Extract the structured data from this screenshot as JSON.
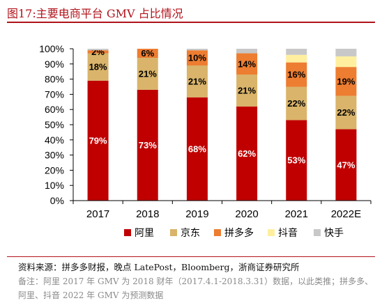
{
  "figure": {
    "label": "图17:",
    "title": "主要电商平台 GMV 占比情况"
  },
  "footer": {
    "source": "资料来源：拼多多财报，晚点 LatePost，Bloomberg，浙商证券研究所",
    "note": "备注：阿里 2017 年 GMV 为 2018 财年（2017.4.1-2018.3.31）数据，以此类推；拼多多、阿里、抖音 2022 年 GMV 为预测数据"
  },
  "chart_data": {
    "type": "bar",
    "stacked": true,
    "categories": [
      "2017",
      "2018",
      "2019",
      "2020",
      "2021",
      "2022E"
    ],
    "series": [
      {
        "name": "阿里",
        "color": "#c00000",
        "values": [
          79,
          73,
          68,
          62,
          53,
          47
        ],
        "labels": [
          "79%",
          "73%",
          "68%",
          "62%",
          "53%",
          "47%"
        ]
      },
      {
        "name": "京东",
        "color": "#d9b46a",
        "values": [
          18,
          21,
          21,
          21,
          22,
          22
        ],
        "labels": [
          "18%",
          "21%",
          "21%",
          "21%",
          "22%",
          "22%"
        ]
      },
      {
        "name": "拼多多",
        "color": "#ed7d31",
        "values": [
          2,
          6,
          10,
          14,
          16,
          19
        ],
        "labels": [
          "2%",
          "6%",
          "10%",
          "14%",
          "16%",
          "19%"
        ]
      },
      {
        "name": "抖音",
        "color": "#ffef9f",
        "values": [
          0,
          0,
          0,
          0,
          5,
          7
        ],
        "labels": [
          "",
          "",
          "",
          "",
          "",
          ""
        ]
      },
      {
        "name": "快手",
        "color": "#c8c8c8",
        "values": [
          1,
          0,
          1,
          3,
          4,
          5
        ],
        "labels": [
          "",
          "",
          "",
          "",
          "",
          ""
        ]
      }
    ],
    "ylim": [
      0,
      100
    ],
    "yticks": [
      "0%",
      "10%",
      "20%",
      "30%",
      "40%",
      "50%",
      "60%",
      "70%",
      "80%",
      "90%",
      "100%"
    ],
    "grid": false,
    "legend": "bottom"
  }
}
